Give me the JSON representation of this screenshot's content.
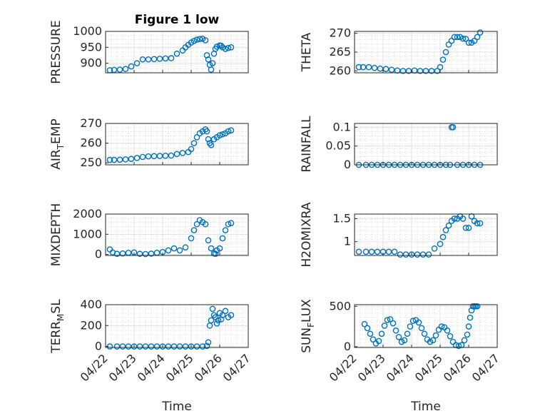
{
  "figure": {
    "title": "Figure 1 low",
    "bg": "#ffffff",
    "marker_color": "#0072BD"
  },
  "chart_data": [
    {
      "id": "pressure",
      "type": "scatter",
      "title": "Figure 1 low",
      "ylabel": "PRESSURE",
      "ylabel_sub": "",
      "ylim": [
        870,
        1000
      ],
      "yticks": [
        1000,
        950,
        900
      ],
      "ytick_labels": [
        "1000",
        "950",
        "900"
      ],
      "xlim": [
        0,
        5
      ],
      "xticks": [
        0,
        1,
        2,
        3,
        4,
        5
      ],
      "xtick_labels": [],
      "xlabel": "",
      "grid": true,
      "x": [
        0.15,
        0.3,
        0.5,
        0.7,
        0.9,
        1.1,
        1.3,
        1.5,
        1.7,
        1.9,
        2.1,
        2.3,
        2.5,
        2.7,
        2.8,
        2.9,
        3.0,
        3.1,
        3.2,
        3.3,
        3.4,
        3.5,
        3.55,
        3.6,
        3.65,
        3.7,
        3.75,
        3.8,
        3.85,
        3.9,
        4.0,
        4.05,
        4.1,
        4.2,
        4.3,
        4.4
      ],
      "y": [
        878,
        879,
        880,
        882,
        890,
        900,
        912,
        912,
        913,
        914,
        915,
        916,
        930,
        940,
        950,
        958,
        965,
        970,
        974,
        976,
        977,
        972,
        925,
        912,
        895,
        880,
        900,
        930,
        945,
        952,
        956,
        955,
        950,
        945,
        948,
        950
      ]
    },
    {
      "id": "theta",
      "type": "scatter",
      "title": "",
      "ylabel": "THETA",
      "ylabel_sub": "",
      "ylim": [
        259.5,
        270.5
      ],
      "yticks": [
        270,
        265,
        260
      ],
      "ytick_labels": [
        "270",
        "265",
        "260"
      ],
      "xlim": [
        0,
        5
      ],
      "xticks": [
        0,
        1,
        2,
        3,
        4,
        5
      ],
      "xtick_labels": [],
      "xlabel": "",
      "grid": true,
      "x": [
        0.15,
        0.3,
        0.5,
        0.7,
        0.9,
        1.1,
        1.3,
        1.5,
        1.7,
        1.9,
        2.1,
        2.3,
        2.5,
        2.7,
        2.9,
        3.0,
        3.1,
        3.2,
        3.3,
        3.4,
        3.5,
        3.6,
        3.7,
        3.8,
        3.9,
        4.0,
        4.1,
        4.2,
        4.3,
        4.4
      ],
      "y": [
        261,
        261,
        261,
        260.8,
        260.6,
        260.5,
        260.3,
        260.1,
        260,
        260,
        260.1,
        260,
        260,
        260,
        260,
        261,
        263,
        265,
        267,
        268,
        269,
        269,
        269,
        268.6,
        268.5,
        267.5,
        267.5,
        268,
        269,
        270.2
      ]
    },
    {
      "id": "air_temp",
      "type": "scatter",
      "title": "",
      "ylabel": "AIR",
      "ylabel_sub": "T",
      "ylabel_post": "EMP",
      "ylim": [
        249,
        270
      ],
      "yticks": [
        270,
        260,
        250
      ],
      "ytick_labels": [
        "270",
        "260",
        "250"
      ],
      "xlim": [
        0,
        5
      ],
      "xticks": [
        0,
        1,
        2,
        3,
        4,
        5
      ],
      "xtick_labels": [],
      "xlabel": "",
      "grid": true,
      "x": [
        0.15,
        0.3,
        0.5,
        0.7,
        0.9,
        1.1,
        1.3,
        1.5,
        1.7,
        1.9,
        2.1,
        2.3,
        2.5,
        2.7,
        2.9,
        3.0,
        3.1,
        3.2,
        3.3,
        3.4,
        3.5,
        3.55,
        3.6,
        3.65,
        3.7,
        3.8,
        3.9,
        4.0,
        4.1,
        4.2,
        4.3,
        4.4
      ],
      "y": [
        251.5,
        251.5,
        251.6,
        251.8,
        252,
        252.5,
        253,
        253.3,
        253.4,
        253.5,
        253.6,
        253.7,
        254.5,
        255,
        255.5,
        257,
        260,
        263,
        265,
        266,
        267,
        266,
        262,
        260,
        259,
        262,
        263,
        264,
        264.5,
        265,
        266,
        266.5
      ]
    },
    {
      "id": "rainfall",
      "type": "scatter",
      "title": "",
      "ylabel": "RAINFALL",
      "ylabel_sub": "",
      "ylim": [
        0,
        0.11
      ],
      "yticks": [
        0.1,
        0.05,
        0
      ],
      "ytick_labels": [
        "0.1",
        "0.05",
        "0"
      ],
      "xlim": [
        0,
        5
      ],
      "xticks": [
        0,
        1,
        2,
        3,
        4,
        5
      ],
      "xtick_labels": [],
      "xlabel": "",
      "grid": true,
      "x": [
        0.15,
        0.4,
        0.6,
        0.8,
        1.0,
        1.2,
        1.4,
        1.6,
        1.8,
        2.0,
        2.2,
        2.4,
        2.6,
        2.8,
        3.0,
        3.2,
        3.35,
        3.4,
        3.45,
        3.6,
        3.8,
        4.0,
        4.2,
        4.4
      ],
      "y": [
        0,
        0,
        0,
        0,
        0,
        0,
        0,
        0,
        0,
        0,
        0,
        0,
        0,
        0,
        0,
        0,
        0,
        0.1,
        0.1,
        0,
        0,
        0,
        0,
        0
      ]
    },
    {
      "id": "mixdepth",
      "type": "scatter",
      "title": "",
      "ylabel": "MIXDEPTH",
      "ylabel_sub": "",
      "ylim": [
        -50,
        2000
      ],
      "yticks": [
        2000,
        1000,
        0
      ],
      "ytick_labels": [
        "2000",
        "1000",
        "0"
      ],
      "xlim": [
        0,
        5
      ],
      "xticks": [
        0,
        1,
        2,
        3,
        4,
        5
      ],
      "xtick_labels": [],
      "xlabel": "",
      "grid": true,
      "x": [
        0.15,
        0.25,
        0.4,
        0.6,
        0.8,
        1.0,
        1.2,
        1.4,
        1.6,
        1.8,
        2.0,
        2.2,
        2.4,
        2.6,
        2.8,
        3.0,
        3.1,
        3.2,
        3.3,
        3.4,
        3.5,
        3.6,
        3.7,
        3.8,
        3.85,
        3.9,
        4.0,
        4.1,
        4.2,
        4.3,
        4.4
      ],
      "y": [
        250,
        100,
        30,
        50,
        80,
        100,
        30,
        20,
        40,
        80,
        120,
        200,
        300,
        200,
        350,
        800,
        1200,
        1500,
        1700,
        1600,
        1500,
        700,
        300,
        50,
        30,
        200,
        300,
        800,
        1200,
        1500,
        1550
      ]
    },
    {
      "id": "h2omixra",
      "type": "scatter",
      "title": "",
      "ylabel": "H2OMIXRA",
      "ylabel_sub": "",
      "ylim": [
        0.7,
        1.6
      ],
      "yticks": [
        1.5,
        1
      ],
      "ytick_labels": [
        "1.5",
        "1"
      ],
      "xlim": [
        0,
        5
      ],
      "xticks": [
        0,
        1,
        2,
        3,
        4,
        5
      ],
      "xtick_labels": [],
      "xlabel": "",
      "grid": true,
      "x": [
        0.15,
        0.4,
        0.6,
        0.8,
        1.0,
        1.2,
        1.4,
        1.6,
        1.8,
        2.0,
        2.2,
        2.4,
        2.6,
        2.8,
        3.0,
        3.1,
        3.2,
        3.3,
        3.4,
        3.5,
        3.6,
        3.7,
        3.8,
        3.9,
        4.0,
        4.1,
        4.2,
        4.3,
        4.4
      ],
      "y": [
        0.78,
        0.78,
        0.78,
        0.78,
        0.78,
        0.78,
        0.78,
        0.72,
        0.72,
        0.72,
        0.72,
        0.72,
        0.72,
        0.85,
        0.95,
        1.1,
        1.25,
        1.35,
        1.45,
        1.5,
        1.5,
        1.55,
        1.5,
        1.3,
        1.3,
        1.55,
        1.45,
        1.4,
        1.4
      ]
    },
    {
      "id": "terr_msl",
      "type": "scatter",
      "title": "",
      "ylabel": "TERR",
      "ylabel_sub": "M",
      "ylabel_post": "SL",
      "ylim": [
        -10,
        400
      ],
      "yticks": [
        400,
        200,
        0
      ],
      "ytick_labels": [
        "400",
        "200",
        "0"
      ],
      "xlim": [
        0,
        5
      ],
      "xticks": [
        0,
        1,
        2,
        3,
        4,
        5
      ],
      "xtick_labels": [
        "04/22",
        "04/23",
        "04/24",
        "04/25",
        "04/26",
        "04/27"
      ],
      "xlabel": "Time",
      "grid": true,
      "x": [
        0.15,
        0.4,
        0.6,
        0.8,
        1.0,
        1.2,
        1.4,
        1.6,
        1.8,
        2.0,
        2.2,
        2.4,
        2.6,
        2.8,
        3.0,
        3.2,
        3.4,
        3.55,
        3.6,
        3.65,
        3.7,
        3.75,
        3.8,
        3.85,
        3.9,
        3.95,
        4.0,
        4.05,
        4.1,
        4.2,
        4.3,
        4.4
      ],
      "y": [
        0,
        0,
        0,
        0,
        0,
        0,
        0,
        0,
        0,
        0,
        0,
        0,
        0,
        0,
        0,
        0,
        0,
        5,
        40,
        200,
        250,
        360,
        300,
        280,
        220,
        250,
        320,
        260,
        300,
        340,
        280,
        300
      ]
    },
    {
      "id": "sun_flux",
      "type": "scatter",
      "title": "",
      "ylabel": "SUN",
      "ylabel_sub": "F",
      "ylabel_post": "LUX",
      "ylim": [
        -10,
        520
      ],
      "yticks": [
        500,
        0
      ],
      "ytick_labels": [
        "500",
        "0"
      ],
      "xlim": [
        0,
        5
      ],
      "xticks": [
        0,
        1,
        2,
        3,
        4,
        5
      ],
      "xtick_labels": [
        "04/22",
        "04/23",
        "04/24",
        "04/25",
        "04/26",
        "04/27"
      ],
      "xlabel": "Time",
      "grid": true,
      "x": [
        0.35,
        0.45,
        0.55,
        0.65,
        0.75,
        0.85,
        0.95,
        1.05,
        1.15,
        1.25,
        1.35,
        1.45,
        1.55,
        1.65,
        1.75,
        1.85,
        1.95,
        2.05,
        2.15,
        2.25,
        2.35,
        2.45,
        2.55,
        2.65,
        2.75,
        2.85,
        2.95,
        3.05,
        3.15,
        3.25,
        3.35,
        3.45,
        3.55,
        3.65,
        3.75,
        3.85,
        3.95,
        4.0,
        4.05,
        4.1,
        4.15,
        4.2,
        4.25,
        4.3
      ],
      "y": [
        280,
        230,
        160,
        90,
        40,
        70,
        160,
        260,
        330,
        340,
        290,
        200,
        120,
        60,
        80,
        160,
        250,
        320,
        330,
        300,
        230,
        160,
        90,
        60,
        80,
        140,
        210,
        250,
        240,
        200,
        130,
        60,
        20,
        10,
        20,
        80,
        150,
        250,
        360,
        450,
        500,
        500,
        500,
        500
      ]
    }
  ]
}
